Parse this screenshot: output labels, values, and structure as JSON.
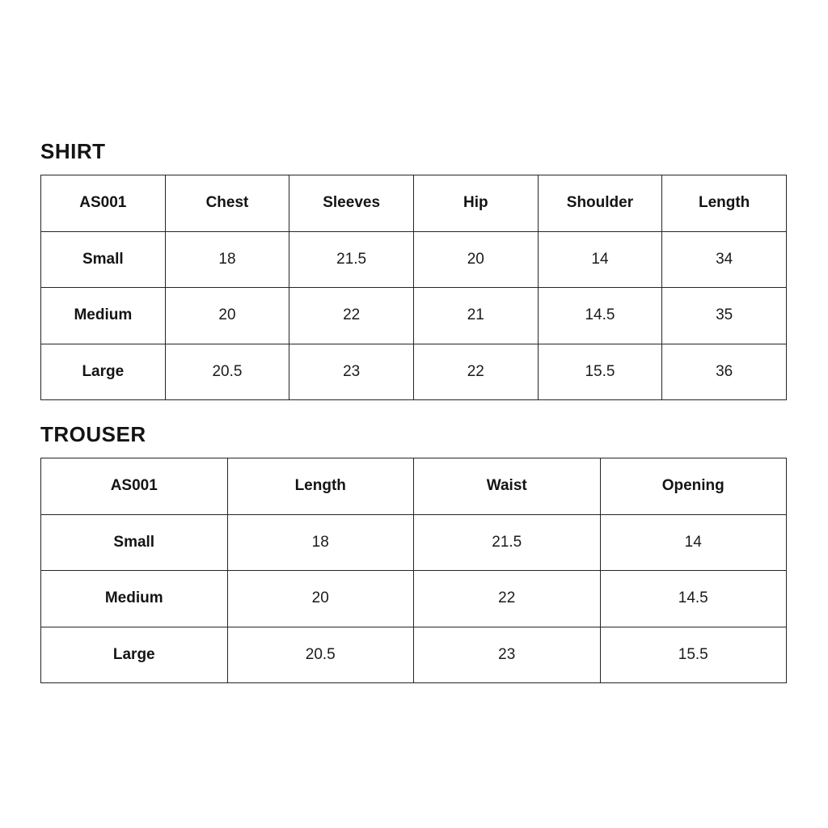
{
  "page": {
    "background_color": "#ffffff",
    "text_color": "#161616",
    "border_color": "#252525"
  },
  "tables": [
    {
      "title": "SHIRT",
      "columns": [
        "AS001",
        "Chest",
        "Sleeves",
        "Hip",
        "Shoulder",
        "Length"
      ],
      "rows": [
        {
          "label": "Small",
          "values": [
            "18",
            "21.5",
            "20",
            "14",
            "34"
          ]
        },
        {
          "label": "Medium",
          "values": [
            "20",
            "22",
            "21",
            "14.5",
            "35"
          ]
        },
        {
          "label": "Large",
          "values": [
            "20.5",
            "23",
            "22",
            "15.5",
            "36"
          ]
        }
      ]
    },
    {
      "title": "TROUSER",
      "columns": [
        "AS001",
        "Length",
        "Waist",
        "Opening"
      ],
      "rows": [
        {
          "label": "Small",
          "values": [
            "18",
            "21.5",
            "14"
          ]
        },
        {
          "label": "Medium",
          "values": [
            "20",
            "22",
            "14.5"
          ]
        },
        {
          "label": "Large",
          "values": [
            "20.5",
            "23",
            "15.5"
          ]
        }
      ]
    }
  ]
}
